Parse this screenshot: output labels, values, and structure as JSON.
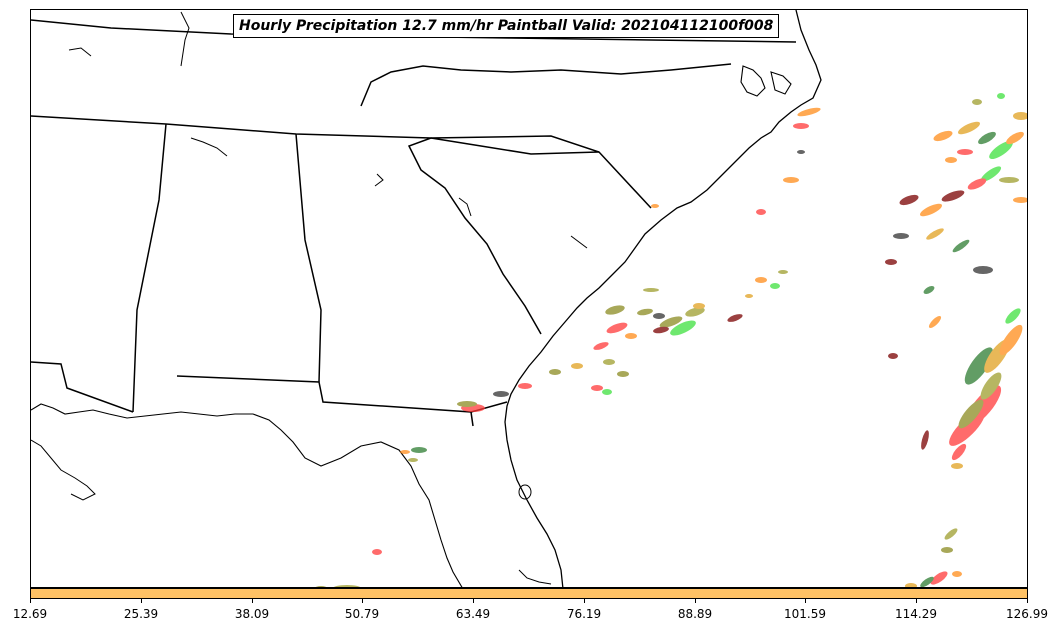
{
  "title": "Hourly Precipitation 12.7 mm/hr Paintball Valid: 202104112100f008",
  "colorbar": {
    "color": "#ffc265",
    "ticks": [
      "12.69",
      "25.39",
      "38.09",
      "50.79",
      "63.49",
      "76.19",
      "88.89",
      "101.59",
      "114.29",
      "126.99"
    ]
  },
  "paintball_colors": [
    "#ff3a3a",
    "#ff8c1a",
    "#3fe03f",
    "#2e7d32",
    "#8b8b22",
    "#9e9e2e",
    "#7a0000",
    "#333333",
    "#e0a020"
  ],
  "map": {
    "region": "Southeastern United States",
    "features": [
      "coastlines",
      "state-borders"
    ]
  }
}
